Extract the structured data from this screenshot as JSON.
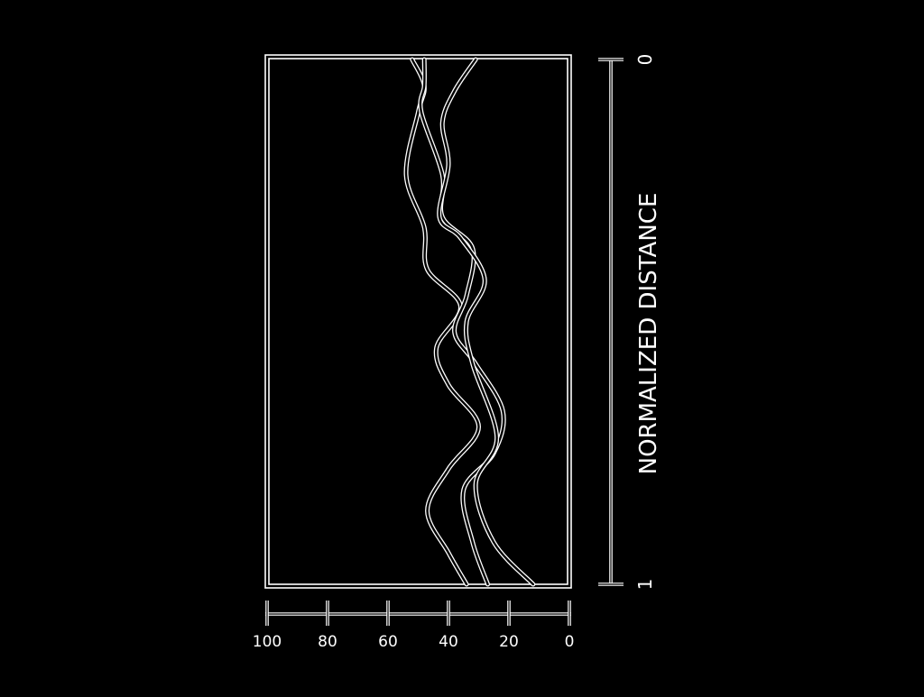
{
  "chart_data": {
    "type": "line",
    "title": "",
    "xlabel": "",
    "ylabel": "NORMALIZED DISTANCE",
    "xlim": [
      100,
      0
    ],
    "ylim": [
      0,
      1
    ],
    "x_ticks": [
      100,
      80,
      60,
      40,
      20,
      0
    ],
    "x_tick_labels": [
      "100",
      "80",
      "60",
      "40",
      "20",
      "0"
    ],
    "y_ticks": [
      0,
      1
    ],
    "y_tick_labels": [
      "0",
      "1"
    ],
    "grid": false,
    "legend": "none",
    "colors": {
      "background": "#000000",
      "foreground": "#ffffff"
    },
    "series": [
      {
        "points": [
          [
            52,
            0.0
          ],
          [
            48,
            0.05
          ],
          [
            50,
            0.1
          ],
          [
            54,
            0.22
          ],
          [
            48,
            0.32
          ],
          [
            47,
            0.4
          ],
          [
            36,
            0.47
          ],
          [
            44,
            0.55
          ],
          [
            40,
            0.62
          ],
          [
            30,
            0.7
          ],
          [
            40,
            0.78
          ],
          [
            47,
            0.86
          ],
          [
            40,
            0.94
          ],
          [
            34,
            1.0
          ]
        ]
      },
      {
        "points": [
          [
            48,
            0.0
          ],
          [
            48,
            0.05
          ],
          [
            49,
            0.1
          ],
          [
            42,
            0.22
          ],
          [
            42,
            0.3
          ],
          [
            32,
            0.36
          ],
          [
            34,
            0.45
          ],
          [
            38,
            0.52
          ],
          [
            31,
            0.58
          ],
          [
            22,
            0.67
          ],
          [
            25,
            0.75
          ],
          [
            35,
            0.82
          ],
          [
            32,
            0.92
          ],
          [
            27,
            1.0
          ]
        ]
      },
      {
        "points": [
          [
            31,
            0.0
          ],
          [
            38,
            0.06
          ],
          [
            42,
            0.12
          ],
          [
            40,
            0.2
          ],
          [
            43,
            0.3
          ],
          [
            36,
            0.34
          ],
          [
            28,
            0.42
          ],
          [
            34,
            0.5
          ],
          [
            32,
            0.58
          ],
          [
            24,
            0.72
          ],
          [
            31,
            0.81
          ],
          [
            25,
            0.92
          ],
          [
            12,
            1.0
          ]
        ]
      }
    ]
  }
}
